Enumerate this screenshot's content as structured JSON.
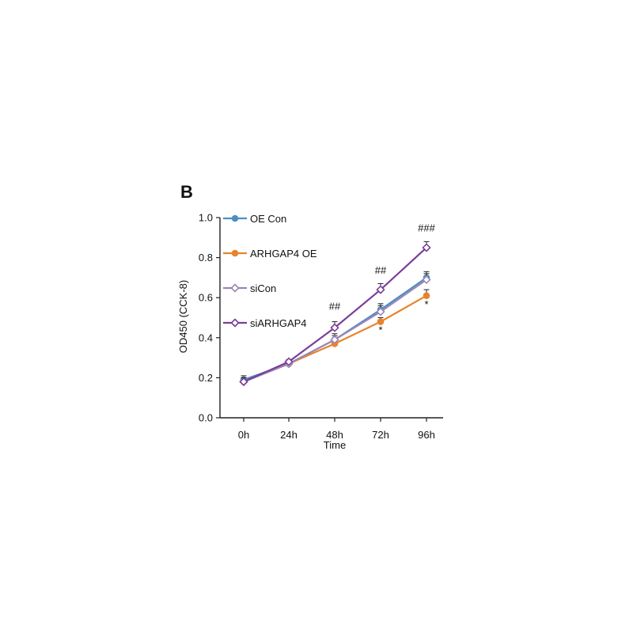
{
  "panel_label": "B",
  "chart_data": {
    "type": "line",
    "title": "",
    "xlabel": "Time",
    "ylabel": "OD450 (CCK-8)",
    "categories": [
      "0h",
      "24h",
      "48h",
      "72h",
      "96h"
    ],
    "ylim": [
      0,
      1.0
    ],
    "yticks": [
      "0.0",
      "0.2",
      "0.4",
      "0.6",
      "0.8",
      "1.0"
    ],
    "grid": false,
    "legend_position": "top-left",
    "series": [
      {
        "name": "OE Con",
        "color": "#4a8fc4",
        "marker": "circle",
        "values": [
          0.19,
          0.27,
          0.39,
          0.54,
          0.7
        ],
        "errors": [
          0.02,
          0.01,
          0.03,
          0.03,
          0.03
        ]
      },
      {
        "name": "ARHGAP4 OE",
        "color": "#e8832a",
        "marker": "circle",
        "values": [
          0.18,
          0.27,
          0.37,
          0.48,
          0.61
        ],
        "errors": [
          0.02,
          0.01,
          0.01,
          0.02,
          0.03
        ]
      },
      {
        "name": "siCon",
        "color": "#9b86b8",
        "marker": "diamond",
        "values": [
          0.18,
          0.27,
          0.39,
          0.53,
          0.69
        ],
        "errors": [
          0.02,
          0.01,
          0.02,
          0.03,
          0.03
        ]
      },
      {
        "name": "siARHGAP4",
        "color": "#7a3e9a",
        "marker": "diamond",
        "values": [
          0.18,
          0.28,
          0.45,
          0.64,
          0.85
        ],
        "errors": [
          0.02,
          0.01,
          0.03,
          0.03,
          0.03
        ]
      }
    ],
    "annotations": [
      {
        "text": "##",
        "category": "48h",
        "y": 0.54
      },
      {
        "text": "##",
        "category": "72h",
        "y": 0.72
      },
      {
        "text": "###",
        "category": "96h",
        "y": 0.93
      },
      {
        "text": "*",
        "category": "72h",
        "y": 0.42
      },
      {
        "text": "*",
        "category": "96h",
        "y": 0.55
      }
    ]
  }
}
